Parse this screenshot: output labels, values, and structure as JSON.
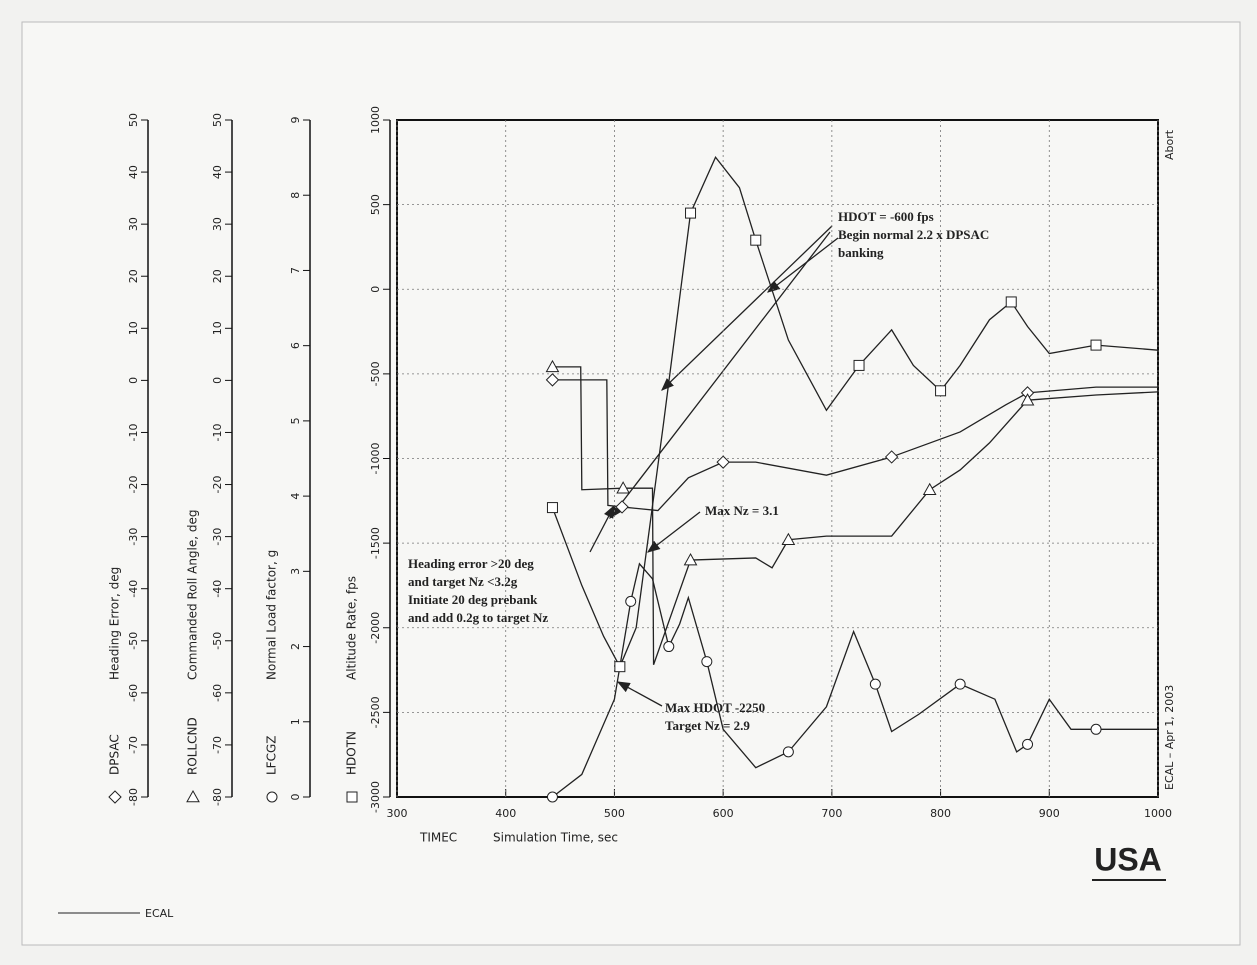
{
  "chart_data": {
    "type": "line",
    "xlabel_prefix": "TIMEC",
    "xlabel": "Simulation Time, sec",
    "xlim": [
      300,
      1000
    ],
    "xticks": [
      300,
      400,
      500,
      600,
      700,
      800,
      900,
      1000
    ],
    "grid": true,
    "axes": [
      {
        "label": "Heading Error, deg",
        "lim": [
          -80,
          50
        ],
        "ticks": [
          -80,
          -70,
          -60,
          -50,
          -40,
          -30,
          -20,
          -10,
          0,
          10,
          20,
          30,
          40,
          50
        ]
      },
      {
        "label": "Commanded Roll Angle, deg",
        "lim": [
          -80,
          50
        ],
        "ticks": [
          -80,
          -70,
          -60,
          -50,
          -40,
          -30,
          -20,
          -10,
          0,
          10,
          20,
          30,
          40,
          50
        ]
      },
      {
        "label": "Normal Load factor, g",
        "lim": [
          0,
          9
        ],
        "ticks": [
          0,
          1,
          2,
          3,
          4,
          5,
          6,
          7,
          8,
          9
        ]
      },
      {
        "label": "Altitude Rate, fps",
        "lim": [
          -3000,
          1000
        ],
        "ticks": [
          -3000,
          -2500,
          -2000,
          -1500,
          -1000,
          -500,
          0,
          500,
          1000
        ]
      }
    ],
    "series": [
      {
        "name": "DPSAC",
        "axis": 0,
        "marker": "diamond",
        "color": "#222222",
        "x": [
          443,
          493,
          494,
          507,
          540,
          568,
          600,
          630,
          695,
          755,
          818,
          860,
          880,
          943,
          1000
        ],
        "values": [
          0.1,
          0.1,
          -24,
          -24.3,
          -25,
          -18.7,
          -15.7,
          -15.7,
          -18.2,
          -14.7,
          -9.9,
          -4.7,
          -2.4,
          -1.3,
          -1.3
        ]
      },
      {
        "name": "ROLLCND",
        "axis": 1,
        "marker": "triangle",
        "color": "#222222",
        "x": [
          443,
          469,
          470,
          508,
          535,
          536,
          570,
          630,
          645,
          660,
          695,
          755,
          790,
          818,
          845,
          880,
          943,
          1000
        ],
        "values": [
          2.6,
          2.6,
          -21,
          -20.7,
          -20.7,
          -54.6,
          -34.5,
          -34.1,
          -36,
          -30.6,
          -29.9,
          -29.9,
          -21,
          -17.2,
          -12,
          -3.8,
          -2.8,
          -2.2
        ]
      },
      {
        "name": "LFCGZ",
        "axis": 2,
        "marker": "circle",
        "color": "#222222",
        "x": [
          443,
          470,
          500,
          515,
          523,
          535,
          550,
          560,
          568,
          585,
          600,
          630,
          660,
          695,
          720,
          740,
          755,
          780,
          818,
          850,
          870,
          880,
          900,
          920,
          943,
          1000
        ],
        "values": [
          0,
          0.3,
          1.3,
          2.6,
          3.1,
          2.9,
          2.0,
          2.3,
          2.65,
          1.8,
          0.9,
          0.39,
          0.6,
          1.2,
          2.2,
          1.5,
          0.87,
          1.1,
          1.5,
          1.3,
          0.6,
          0.7,
          1.3,
          0.9,
          0.9,
          0.9
        ]
      },
      {
        "name": "HDOTN",
        "axis": 3,
        "marker": "square",
        "color": "#222222",
        "x": [
          443,
          470,
          490,
          505,
          520,
          545,
          570,
          593,
          615,
          630,
          660,
          695,
          725,
          755,
          775,
          800,
          818,
          845,
          865,
          880,
          900,
          943,
          1000
        ],
        "values": [
          -1290,
          -1750,
          -2050,
          -2230,
          -2000,
          -800,
          450,
          780,
          600,
          290,
          -300,
          -715,
          -450,
          -240,
          -450,
          -600,
          -450,
          -180,
          -75,
          -220,
          -380,
          -330,
          -360
        ]
      }
    ],
    "annotations": [
      [
        "HDOT = -600 fps",
        "Begin normal 2.2 x DPSAC",
        "banking"
      ],
      [
        "Max Nz = 3.1"
      ],
      [
        "Heading error >20 deg",
        "and target Nz <3.2g",
        "Initiate 20 deg prebank",
        "and add 0.2g to target Nz"
      ],
      [
        "Max HDOT -2250",
        "Target Nz = 2.9"
      ]
    ],
    "right_top": "Abort",
    "right_bottom": "ECAL  –  Apr  1, 2003",
    "legend": "ECAL",
    "logo": "USA"
  }
}
